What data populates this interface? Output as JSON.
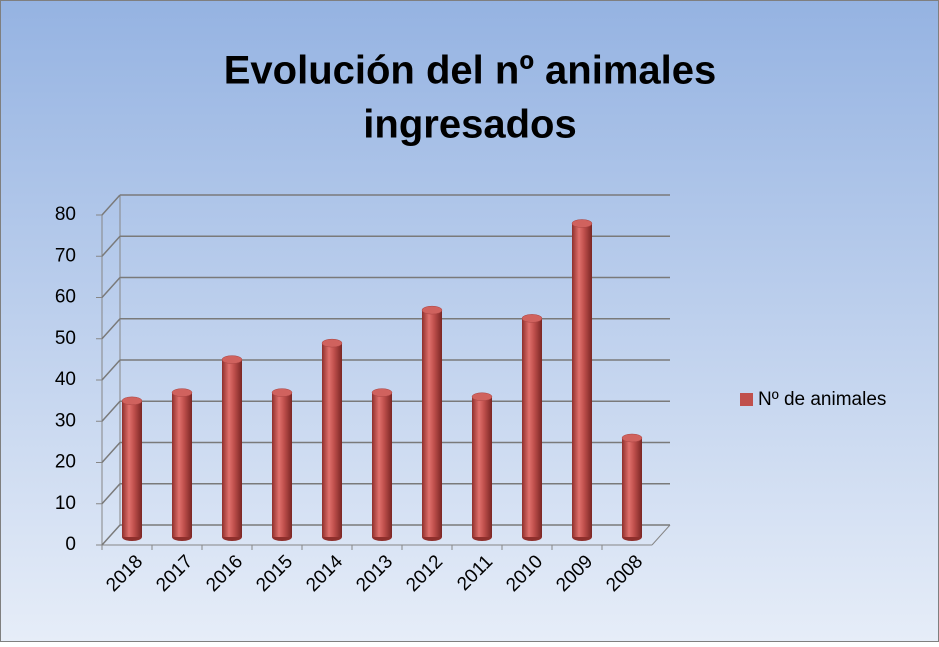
{
  "chart_data": {
    "type": "bar",
    "title": [
      "Evolución del nº animales",
      "ingresados"
    ],
    "categories": [
      "2018",
      "2017",
      "2016",
      "2015",
      "2014",
      "2013",
      "2012",
      "2011",
      "2010",
      "2009",
      "2008"
    ],
    "series": [
      {
        "name": "Nº de animales",
        "color": "#c0504d",
        "values": [
          33,
          35,
          43,
          35,
          47,
          35,
          55,
          34,
          53,
          76,
          24
        ]
      }
    ],
    "ylim": [
      0,
      80
    ],
    "yticks": [
      0,
      10,
      20,
      30,
      40,
      50,
      60,
      70,
      80
    ],
    "grid": true,
    "legend": "right"
  }
}
